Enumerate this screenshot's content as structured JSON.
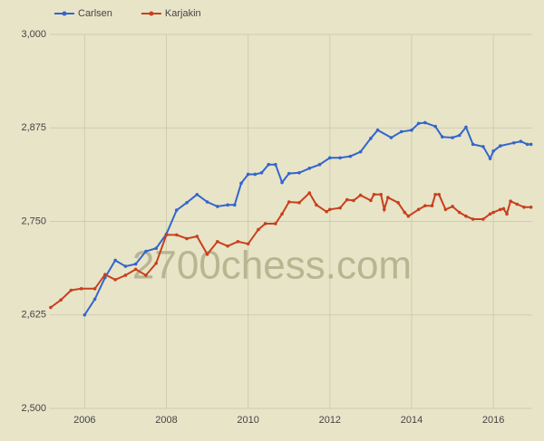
{
  "chart_data": {
    "type": "line",
    "watermark": "2700chess.com",
    "xlim": [
      2005.15,
      2016.95
    ],
    "ylim": [
      2500,
      3000
    ],
    "xticks": [
      2006,
      2008,
      2010,
      2012,
      2014,
      2016
    ],
    "yticks": [
      {
        "value": 2500,
        "label": "2,500"
      },
      {
        "value": 2625,
        "label": "2,625"
      },
      {
        "value": 2750,
        "label": "2,750"
      },
      {
        "value": 2875,
        "label": "2,875"
      },
      {
        "value": 3000,
        "label": "3,000"
      }
    ],
    "grid": true,
    "legend": "top-left",
    "series": [
      {
        "name": "Carlsen",
        "color": "#3366cc",
        "x": [
          2006.0,
          2006.25,
          2006.5,
          2006.75,
          2007.0,
          2007.25,
          2007.5,
          2007.75,
          2008.0,
          2008.25,
          2008.5,
          2008.75,
          2009.0,
          2009.25,
          2009.5,
          2009.67,
          2009.83,
          2010.0,
          2010.17,
          2010.33,
          2010.5,
          2010.67,
          2010.83,
          2011.0,
          2011.25,
          2011.5,
          2011.75,
          2012.0,
          2012.25,
          2012.5,
          2012.75,
          2013.0,
          2013.17,
          2013.5,
          2013.75,
          2014.0,
          2014.17,
          2014.33,
          2014.58,
          2014.75,
          2015.0,
          2015.17,
          2015.33,
          2015.5,
          2015.75,
          2015.92,
          2016.0,
          2016.17,
          2016.5,
          2016.67,
          2016.83,
          2016.92
        ],
        "values": [
          2625,
          2646,
          2675,
          2698,
          2690,
          2693,
          2710,
          2714,
          2733,
          2765,
          2775,
          2786,
          2776,
          2770,
          2772,
          2772,
          2801,
          2813,
          2813,
          2815,
          2826,
          2826,
          2802,
          2814,
          2815,
          2821,
          2826,
          2835,
          2835,
          2837,
          2843,
          2861,
          2872,
          2862,
          2870,
          2872,
          2881,
          2882,
          2877,
          2863,
          2862,
          2865,
          2876,
          2853,
          2850,
          2834,
          2844,
          2851,
          2855,
          2857,
          2853,
          2853
        ]
      },
      {
        "name": "Karjakin",
        "color": "#c8401c",
        "x": [
          2005.17,
          2005.42,
          2005.67,
          2005.92,
          2006.25,
          2006.5,
          2006.75,
          2007.0,
          2007.25,
          2007.5,
          2007.75,
          2008.0,
          2008.25,
          2008.5,
          2008.75,
          2009.0,
          2009.25,
          2009.5,
          2009.75,
          2010.0,
          2010.25,
          2010.42,
          2010.67,
          2010.83,
          2011.0,
          2011.25,
          2011.5,
          2011.67,
          2011.92,
          2012.0,
          2012.25,
          2012.42,
          2012.58,
          2012.75,
          2013.0,
          2013.08,
          2013.25,
          2013.33,
          2013.42,
          2013.67,
          2013.83,
          2013.92,
          2014.17,
          2014.33,
          2014.5,
          2014.58,
          2014.67,
          2014.83,
          2015.0,
          2015.17,
          2015.33,
          2015.5,
          2015.75,
          2015.92,
          2016.0,
          2016.17,
          2016.25,
          2016.33,
          2016.42,
          2016.58,
          2016.75,
          2016.92
        ],
        "values": [
          2635,
          2645,
          2658,
          2660,
          2660,
          2679,
          2672,
          2678,
          2686,
          2678,
          2694,
          2732,
          2732,
          2727,
          2730,
          2706,
          2723,
          2717,
          2723,
          2720,
          2739,
          2747,
          2747,
          2760,
          2776,
          2775,
          2788,
          2772,
          2763,
          2766,
          2768,
          2779,
          2778,
          2785,
          2778,
          2786,
          2786,
          2766,
          2782,
          2775,
          2762,
          2757,
          2766,
          2771,
          2771,
          2786,
          2786,
          2766,
          2770,
          2762,
          2757,
          2753,
          2753,
          2760,
          2762,
          2766,
          2767,
          2760,
          2777,
          2773,
          2769,
          2769
        ]
      }
    ]
  }
}
